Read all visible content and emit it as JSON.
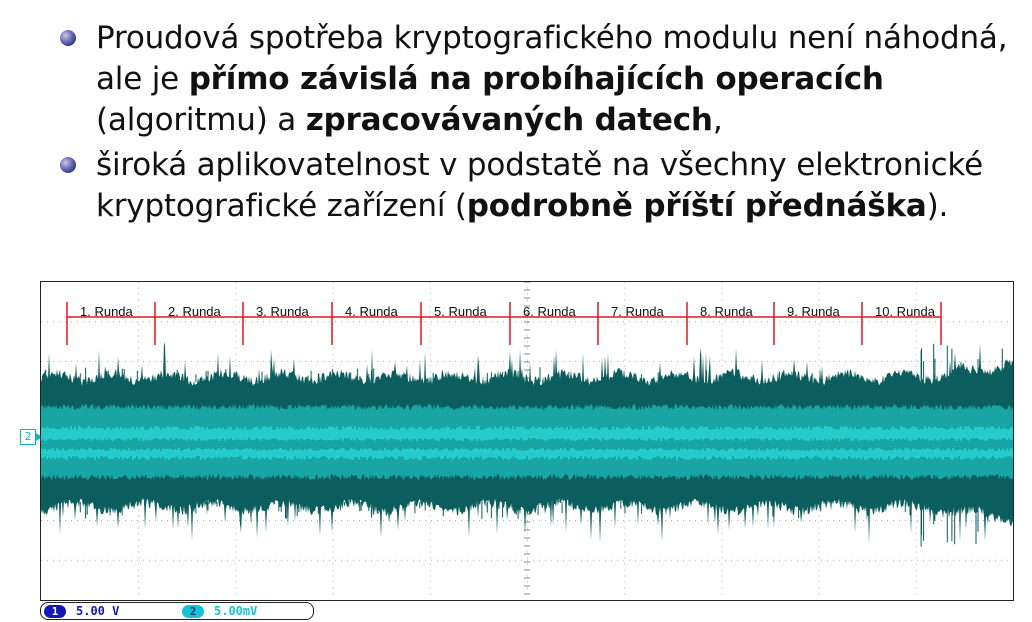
{
  "slide": {
    "bullets": [
      {
        "parts": [
          {
            "text": "Proudová spotřeba kryptografického modulu není náhodná, ale je ",
            "bold": false
          },
          {
            "text": "přímo závislá na probíhajících operacích",
            "bold": true
          },
          {
            "text": " (algoritmu) a ",
            "bold": false
          },
          {
            "text": "zpracovávaných datech",
            "bold": true
          },
          {
            "text": ",",
            "bold": false
          }
        ]
      },
      {
        "parts": [
          {
            "text": "široká aplikovatelnost v podstatě na všechny elektronické kryptografické zařízení (",
            "bold": false
          },
          {
            "text": "podrobně příští přednáška",
            "bold": true
          },
          {
            "text": ").",
            "bold": false
          }
        ]
      }
    ]
  },
  "oscilloscope": {
    "rounds": [
      "1. Runda",
      "2. Runda",
      "3. Runda",
      "4. Runda",
      "5. Runda",
      "6. Runda",
      "7. Runda",
      "8. Runda",
      "9. Runda",
      "10. Runda"
    ],
    "channel_marker": "2",
    "channel1": {
      "number": "1",
      "scale": "5.00 V"
    },
    "channel2": {
      "number": "2",
      "scale": "5.00mV"
    },
    "colors": {
      "ruler": "#e8141e",
      "trace_dark": "#0c5e5e",
      "trace_mid": "#1aa5a5",
      "trace_light": "#2ee6e6",
      "grid": "#8a8a8a"
    }
  }
}
